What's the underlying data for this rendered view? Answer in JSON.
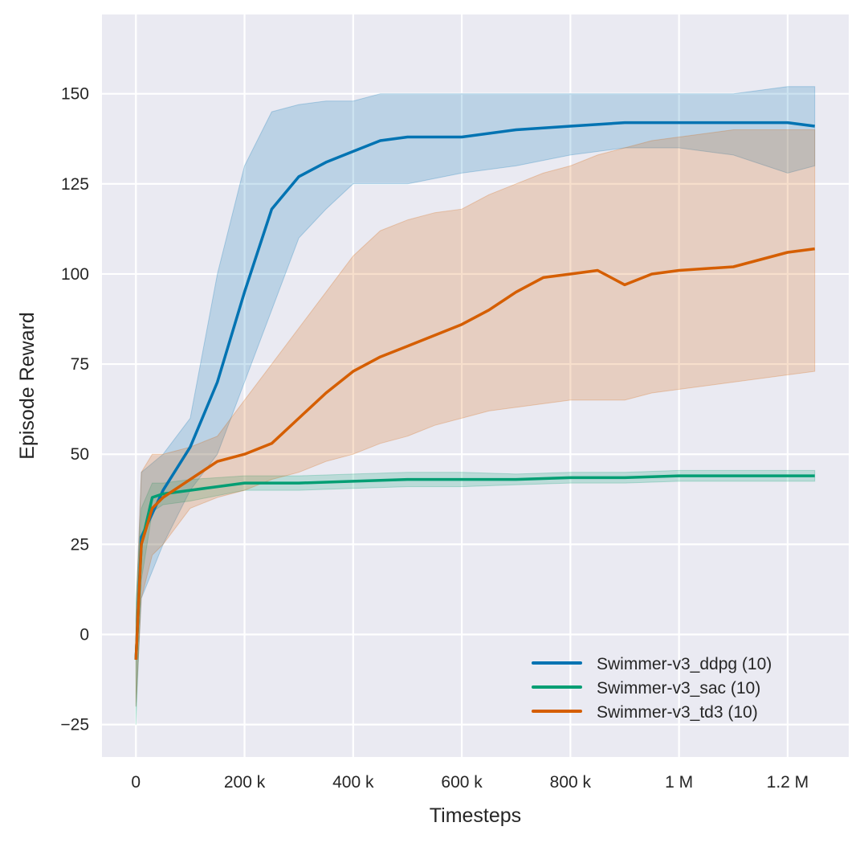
{
  "chart_data": {
    "type": "line",
    "title": "",
    "xlabel": "Timesteps",
    "ylabel": "Episode Reward",
    "xlim": [
      -62500,
      1312500
    ],
    "ylim": [
      -34,
      172
    ],
    "grid": true,
    "background": "#eaeaf2",
    "legend_placement": "bottom-right",
    "x_ticks": [
      0,
      200000,
      400000,
      600000,
      800000,
      1000000,
      1200000
    ],
    "x_tick_labels": [
      "0",
      "200 k",
      "400 k",
      "600 k",
      "800 k",
      "1 M",
      "1.2 M"
    ],
    "y_ticks": [
      -25,
      0,
      25,
      50,
      75,
      100,
      125,
      150
    ],
    "y_tick_labels": [
      "−25",
      "0",
      "25",
      "50",
      "75",
      "100",
      "125",
      "150"
    ],
    "series": [
      {
        "name": "Swimmer-v3_ddpg (10)",
        "color": "#0173b2",
        "x": [
          0,
          10000,
          50000,
          100000,
          150000,
          200000,
          250000,
          300000,
          350000,
          400000,
          450000,
          500000,
          600000,
          700000,
          800000,
          900000,
          1000000,
          1100000,
          1200000,
          1250000
        ],
        "mean": [
          -7,
          27,
          40,
          52,
          70,
          95,
          118,
          127,
          131,
          134,
          137,
          138,
          138,
          140,
          141,
          142,
          142,
          142,
          142,
          141
        ],
        "lower": [
          -20,
          10,
          25,
          40,
          50,
          70,
          90,
          110,
          118,
          125,
          125,
          125,
          128,
          130,
          133,
          135,
          135,
          133,
          128,
          130
        ],
        "upper": [
          5,
          45,
          50,
          60,
          100,
          130,
          145,
          147,
          148,
          148,
          150,
          150,
          150,
          150,
          150,
          150,
          150,
          150,
          152,
          152
        ]
      },
      {
        "name": "Swimmer-v3_sac (10)",
        "color": "#029e73",
        "x": [
          0,
          10000,
          30000,
          50000,
          100000,
          150000,
          200000,
          300000,
          400000,
          500000,
          600000,
          700000,
          800000,
          900000,
          1000000,
          1100000,
          1200000,
          1250000
        ],
        "mean": [
          -7,
          25,
          38,
          39,
          40,
          41,
          42,
          42,
          42.5,
          43,
          43,
          43,
          43.5,
          43.5,
          44,
          44,
          44,
          44
        ],
        "lower": [
          -25,
          15,
          34,
          36,
          37,
          38.5,
          40,
          40,
          40.5,
          41,
          41,
          41.5,
          42,
          42,
          42.5,
          42.5,
          42.5,
          42.5
        ],
        "upper": [
          10,
          35,
          42,
          42,
          43,
          43.5,
          44,
          44,
          44.5,
          45,
          45,
          44.5,
          45,
          45,
          45.5,
          45.5,
          45.5,
          45.5
        ]
      },
      {
        "name": "Swimmer-v3_td3 (10)",
        "color": "#d55e00",
        "x": [
          0,
          10000,
          30000,
          50000,
          100000,
          150000,
          200000,
          250000,
          300000,
          350000,
          400000,
          450000,
          500000,
          550000,
          600000,
          650000,
          700000,
          750000,
          800000,
          850000,
          900000,
          950000,
          1000000,
          1100000,
          1200000,
          1250000
        ],
        "mean": [
          -7,
          25,
          35,
          38,
          43,
          48,
          50,
          53,
          60,
          67,
          73,
          77,
          80,
          83,
          86,
          90,
          95,
          99,
          100,
          101,
          97,
          100,
          101,
          102,
          106,
          107
        ],
        "lower": [
          -20,
          10,
          22,
          25,
          35,
          38,
          40,
          43,
          45,
          48,
          50,
          53,
          55,
          58,
          60,
          62,
          63,
          64,
          65,
          65,
          65,
          67,
          68,
          70,
          72,
          73
        ],
        "upper": [
          5,
          45,
          50,
          50,
          52,
          55,
          65,
          75,
          85,
          95,
          105,
          112,
          115,
          117,
          118,
          122,
          125,
          128,
          130,
          133,
          135,
          137,
          138,
          140,
          140,
          140
        ]
      }
    ]
  }
}
